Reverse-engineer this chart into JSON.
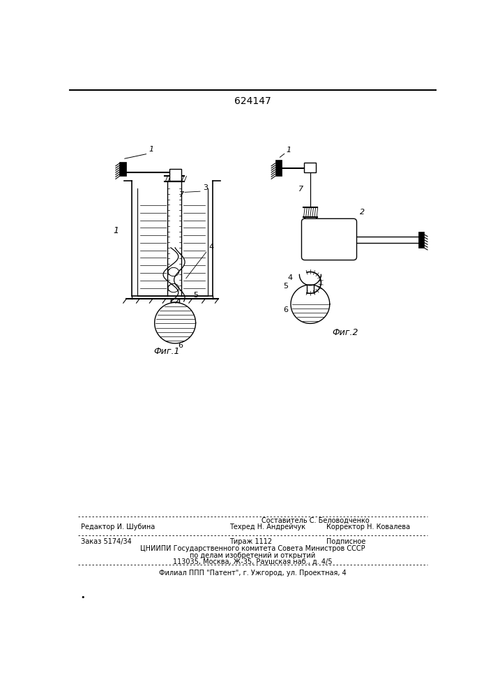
{
  "title": "624147",
  "fig1_label": "Фиг.1",
  "fig2_label": "Фиг.2",
  "bg_color": "#ffffff",
  "lc": "#000000",
  "bottom": {
    "sestavitel": "Составитель С. Беловодченко",
    "redaktor": "Редактор И. Шубина",
    "tehred": "Техред Н. Андрейчук",
    "korrektor": "Корректор Н. Ковалева",
    "zakaz": "Заказ 5174/34",
    "tirazh": "Тираж 1112",
    "podpisnoe": "Подписное",
    "cniip1": "ЦНИИПИ Государственного комитета Совета Министров СССР",
    "cniip2": "по делам изобретений и открытий",
    "cniip3": "113035, Москва, Ж-35, Раушская наб., д. 4/5",
    "filial": "Филиал ППП \"Патент\", г. Ужгород, ул. Проектная, 4"
  }
}
